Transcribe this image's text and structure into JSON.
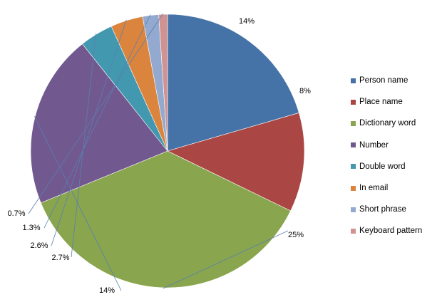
{
  "chart_data": {
    "type": "pie",
    "categories": [
      "Person name",
      "Place name",
      "Dictionary word",
      "Number",
      "Double word",
      "In email",
      "Short phrase",
      "Keyboard pattern"
    ],
    "values": [
      14,
      8,
      25,
      14,
      2.7,
      2.6,
      1.3,
      0.7
    ],
    "data_labels": [
      "14%",
      "8%",
      "25%",
      "14%",
      "2.7%",
      "2.6%",
      "1.3%",
      "0.7%"
    ],
    "colors": [
      "#4572a7",
      "#aa4643",
      "#89a54e",
      "#71588f",
      "#4198af",
      "#db843d",
      "#93a9cf",
      "#d19392"
    ],
    "start_angle_deg": 0,
    "direction": "clockwise",
    "legend_position": "right"
  }
}
